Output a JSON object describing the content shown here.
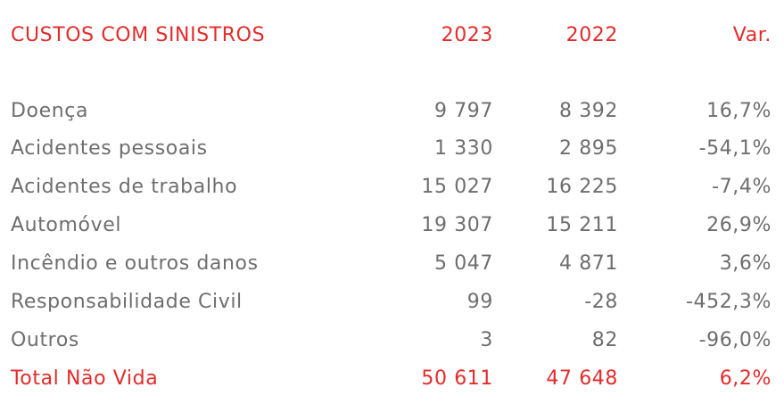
{
  "header": {
    "title": "CUSTOS COM SINISTROS",
    "year1": "2023",
    "year2": "2022",
    "var": "Var."
  },
  "rows": [
    {
      "label": "Doença",
      "y1": "9 797",
      "y2": "8 392",
      "var": "16,7%"
    },
    {
      "label": "Acidentes pessoais",
      "y1": "1 330",
      "y2": "2 895",
      "var": "-54,1%"
    },
    {
      "label": "Acidentes de trabalho",
      "y1": "15 027",
      "y2": "16 225",
      "var": "-7,4%"
    },
    {
      "label": "Automóvel",
      "y1": "19 307",
      "y2": "15 211",
      "var": "26,9%"
    },
    {
      "label": "Incêndio e outros danos",
      "y1": "5 047",
      "y2": "4 871",
      "var": "3,6%"
    },
    {
      "label": "Responsabilidade Civil",
      "y1": "99",
      "y2": "-28",
      "var": "-452,3%"
    },
    {
      "label": "Outros",
      "y1": "3",
      "y2": "82",
      "var": "-96,0%"
    }
  ],
  "total": {
    "label": "Total Não Vida",
    "y1": "50 611",
    "y2": "47 648",
    "var": "6,2%"
  },
  "colors": {
    "accent": "#e32b2b",
    "text": "#6e6e6e",
    "background": "#ffffff"
  }
}
